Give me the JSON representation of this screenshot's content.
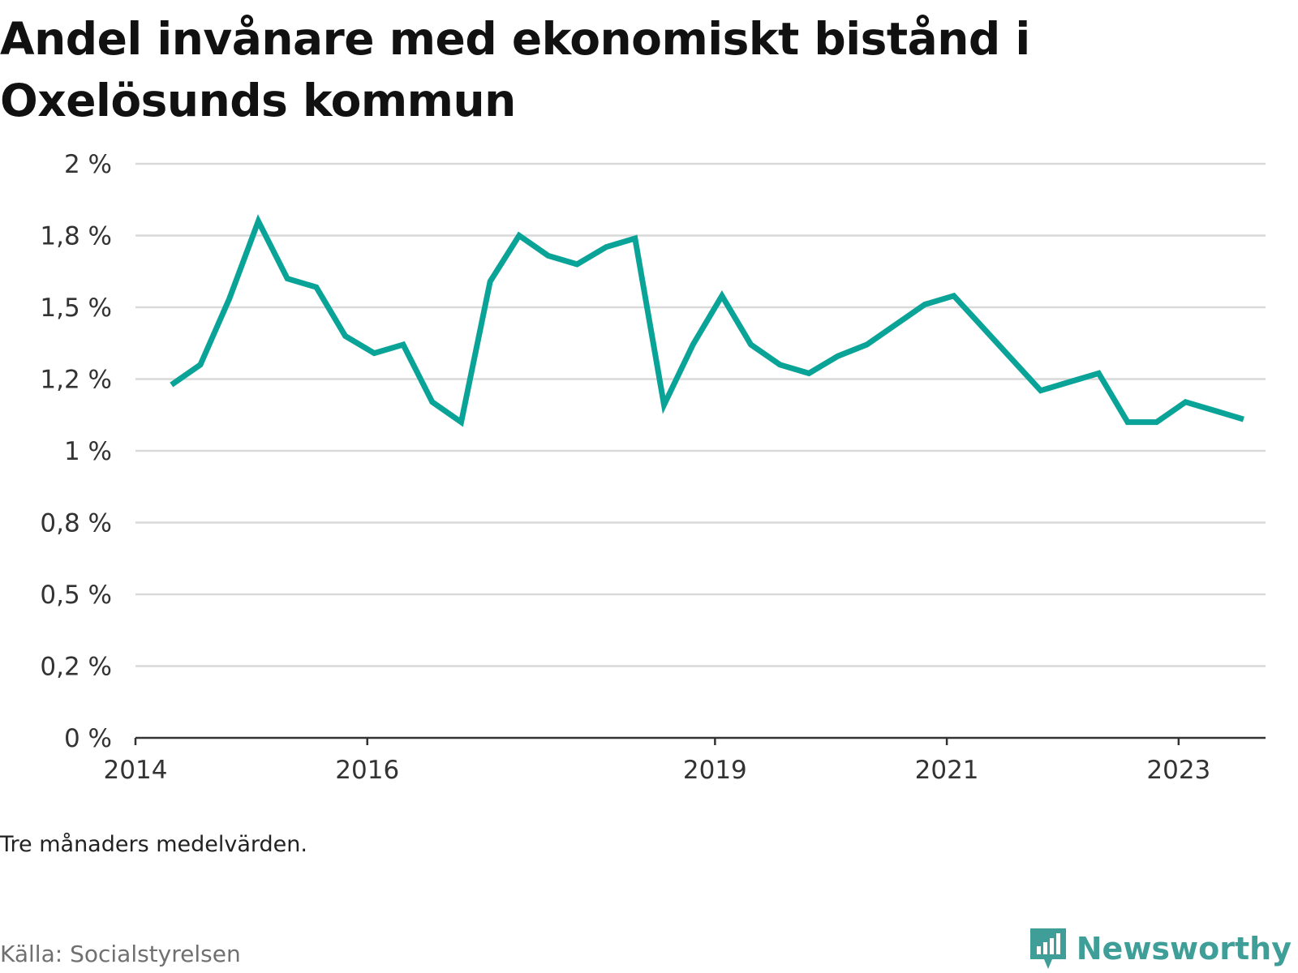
{
  "title": "Andel invånare med ekonomiskt bistånd i Oxelösunds kommun",
  "note": "Tre månaders medelvärden.",
  "source": "Källa: Socialstyrelsen",
  "brand": {
    "name": "Newsworthy",
    "color": "#3f9f98",
    "logo": "bar-chart-speech-bubble-icon"
  },
  "chart_data": {
    "type": "line",
    "title": "Andel invånare med ekonomiskt bistånd i Oxelösunds kommun",
    "xlabel": "",
    "ylabel": "",
    "grid": true,
    "line_color": "#0aa398",
    "xlim": [
      2014.0,
      2023.75
    ],
    "ylim": [
      0,
      2
    ],
    "y_ticks": [
      {
        "value": 0,
        "label": "0 %"
      },
      {
        "value": 0.25,
        "label": "0,2 %"
      },
      {
        "value": 0.5,
        "label": "0,5 %"
      },
      {
        "value": 0.75,
        "label": "0,8 %"
      },
      {
        "value": 1.0,
        "label": "1 %"
      },
      {
        "value": 1.25,
        "label": "1,2 %"
      },
      {
        "value": 1.5,
        "label": "1,5 %"
      },
      {
        "value": 1.75,
        "label": "1,8 %"
      },
      {
        "value": 2.0,
        "label": "2 %"
      }
    ],
    "x_ticks": [
      {
        "value": 2014.0,
        "label": "2014"
      },
      {
        "value": 2016.0,
        "label": "2016"
      },
      {
        "value": 2019.0,
        "label": "2019"
      },
      {
        "value": 2021.0,
        "label": "2021"
      },
      {
        "value": 2023.0,
        "label": "2023"
      }
    ],
    "series": [
      {
        "x": [
          2014.31,
          2014.56,
          2014.81,
          2015.06,
          2015.31,
          2015.56,
          2015.81,
          2016.06,
          2016.31,
          2016.56,
          2016.81,
          2017.06,
          2017.31,
          2017.56,
          2017.81,
          2018.06,
          2018.31,
          2018.56,
          2018.81,
          2019.06,
          2019.31,
          2019.56,
          2019.81,
          2020.06,
          2020.31,
          2020.56,
          2020.81,
          2021.06,
          2021.31,
          2021.56,
          2021.81,
          2022.06,
          2022.31,
          2022.56,
          2022.81,
          2023.06,
          2023.31,
          2023.56
        ],
        "values": [
          1.23,
          1.3,
          1.53,
          1.8,
          1.6,
          1.57,
          1.4,
          1.34,
          1.37,
          1.17,
          1.1,
          1.59,
          1.75,
          1.68,
          1.65,
          1.71,
          1.74,
          1.16,
          1.37,
          1.54,
          1.37,
          1.3,
          1.27,
          1.33,
          1.37,
          1.44,
          1.51,
          1.54,
          1.43,
          1.32,
          1.21,
          1.24,
          1.27,
          1.1,
          1.1,
          1.17,
          1.14,
          1.11
        ]
      }
    ]
  }
}
